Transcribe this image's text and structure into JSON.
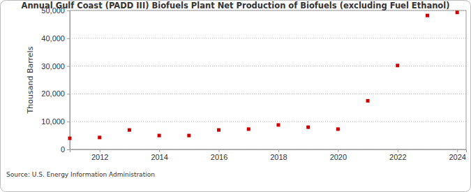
{
  "chart_data": {
    "type": "scatter",
    "title": "Annual Gulf Coast (PADD III) Biofuels Plant Net Production of Biofuels (excluding Fuel Ethanol)",
    "y_label": "Thousand Barrels",
    "source": "Source: U.S. Energy Information Administration",
    "x": [
      2011,
      2012,
      2013,
      2014,
      2015,
      2016,
      2017,
      2018,
      2019,
      2020,
      2021,
      2022,
      2023,
      2024
    ],
    "values": [
      4000,
      4300,
      7000,
      5000,
      5000,
      7000,
      7300,
      8800,
      8000,
      7300,
      17500,
      30200,
      48200,
      49300
    ],
    "color": "#cc0000",
    "marker": "square",
    "xlim": [
      2011,
      2024.3
    ],
    "xticks": [
      2012,
      2014,
      2016,
      2018,
      2020,
      2022,
      2024
    ],
    "ylim": [
      0,
      50000
    ],
    "yticks": [
      0,
      {
        "value": 10000,
        "label": "10,000"
      },
      {
        "value": 20000,
        "label": "20,000"
      },
      {
        "value": 30000,
        "label": "30,000"
      },
      {
        "value": 40000,
        "label": "40,000"
      },
      {
        "value": 50000,
        "label": "50,000"
      }
    ],
    "grid": true
  }
}
